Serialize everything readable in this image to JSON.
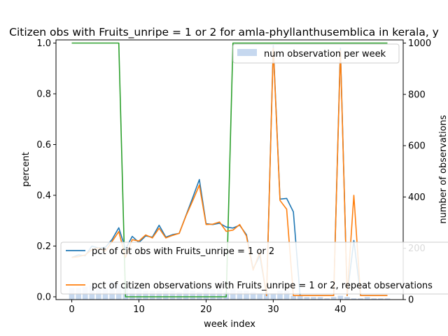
{
  "chart_data": {
    "type": "line",
    "title": "Citizen obs with Fruits_unripe = 1 or 2 for amla-phyllanthusemblica in kerala, y",
    "xlabel": "week index",
    "ylabel": "percent",
    "y2label": "number of observations",
    "xlim": [
      -2.35,
      49.35
    ],
    "ylim": [
      0,
      1.0
    ],
    "y2lim": [
      0,
      1000
    ],
    "xticks": [
      "0",
      "10",
      "20",
      "30",
      "40"
    ],
    "yticks": [
      "0.0",
      "0.2",
      "0.4",
      "0.6",
      "0.8",
      "1.0"
    ],
    "y2ticks": [
      "0",
      "200",
      "400",
      "600",
      "800",
      "1000"
    ],
    "grid": false,
    "legend_upper": {
      "position": "top-right",
      "entries": [
        "num observation per week"
      ]
    },
    "legend_lower": {
      "position": "lower-left",
      "entries": [
        "pct of cit obs with Fruits_unripe = 1 or 2",
        "pct of citizen observations with Fruits_unripe = 1 or 2, repeat observations"
      ]
    },
    "colors": {
      "series1": "#1f77b4",
      "series2": "#ff7f0e",
      "series3": "#2ca02c",
      "bars": "#aec7e8"
    },
    "x": [
      0,
      1,
      2,
      3,
      4,
      5,
      6,
      7,
      8,
      9,
      10,
      11,
      12,
      13,
      14,
      15,
      16,
      17,
      18,
      19,
      20,
      21,
      22,
      23,
      24,
      25,
      26,
      27,
      28,
      29,
      30,
      31,
      32,
      33,
      34,
      35,
      36,
      37,
      38,
      39,
      40,
      41,
      42,
      43,
      44,
      45,
      46,
      47
    ],
    "bars": [
      45,
      45,
      50,
      55,
      45,
      45,
      70,
      60,
      50,
      45,
      45,
      35,
      35,
      35,
      35,
      35,
      30,
      40,
      35,
      30,
      45,
      40,
      40,
      30,
      40,
      35,
      35,
      30,
      25,
      20,
      25,
      35,
      35,
      15,
      15,
      10,
      10,
      10,
      5,
      10,
      15,
      10,
      5,
      5,
      10,
      5,
      5,
      5
    ],
    "series": [
      {
        "values": [
          0.155,
          0.165,
          0.162,
          0.2,
          0.192,
          0.195,
          0.226,
          0.272,
          0.188,
          0.238,
          0.214,
          0.24,
          0.235,
          0.282,
          0.235,
          0.245,
          0.25,
          0.32,
          0.39,
          0.462,
          0.288,
          0.285,
          0.29,
          0.275,
          0.271,
          0.282,
          0.245,
          0.11,
          0.162,
          0.005,
          0.99,
          0.385,
          0.388,
          0.335,
          0.005,
          0.005,
          0.005,
          0.005,
          0.005,
          0.005,
          0.98,
          0.005,
          0.222,
          0.005,
          0.005,
          0.005,
          0.005,
          0.005
        ]
      },
      {
        "values": [
          0.155,
          0.158,
          0.165,
          0.186,
          0.192,
          0.18,
          0.218,
          0.257,
          0.155,
          0.225,
          0.22,
          0.244,
          0.232,
          0.27,
          0.232,
          0.242,
          0.25,
          0.318,
          0.378,
          0.44,
          0.285,
          0.286,
          0.295,
          0.258,
          0.263,
          0.285,
          0.24,
          0.105,
          0.176,
          0.005,
          0.98,
          0.38,
          0.345,
          0.005,
          0.005,
          0.005,
          0.005,
          0.005,
          0.005,
          0.005,
          0.97,
          0.005,
          0.4,
          0.005,
          0.005,
          0.005,
          0.005,
          0.005
        ]
      },
      {
        "values": [
          1.0,
          1.0,
          1.0,
          1.0,
          1.0,
          1.0,
          1.0,
          1.0,
          0.0,
          0.0,
          0.0,
          0.0,
          0.0,
          0.0,
          0.0,
          0.0,
          0.0,
          0.0,
          0.0,
          0.0,
          0.0,
          0.0,
          0.0,
          0.0,
          1.0,
          1.0,
          1.0,
          1.0,
          1.0,
          1.0,
          1.0,
          1.0,
          1.0,
          1.0,
          1.0,
          1.0,
          1.0,
          1.0,
          1.0,
          1.0,
          1.0,
          1.0,
          1.0,
          1.0,
          1.0,
          1.0,
          1.0,
          1.0
        ]
      }
    ]
  }
}
